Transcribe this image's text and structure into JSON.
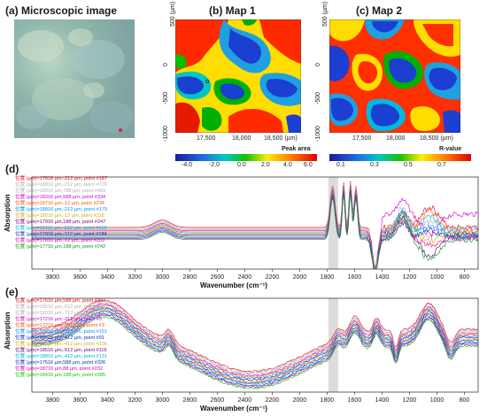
{
  "panels": {
    "a": {
      "title": "(a) Microscopic image"
    },
    "b": {
      "title": "(b) Map 1",
      "colorbar_label": "Peak area",
      "colorbar_ticks": [
        "-4.0",
        "-2.0",
        "0.0",
        "2.0",
        "4.0",
        "6.0"
      ],
      "x_ticks": [
        "17,500",
        "18,000",
        "18,500 (µm)"
      ],
      "y_ticks": [
        "500 (µm)",
        "0",
        "-500",
        "-1000"
      ]
    },
    "c": {
      "title": "(c) Map 2",
      "colorbar_label": "R-value",
      "colorbar_ticks": [
        "0.1",
        "0.3",
        "0.5",
        "0.7"
      ],
      "x_ticks": [
        "17,500",
        "18,000",
        "18,500 (µm)"
      ],
      "y_ticks": [
        "500 (µm)",
        "0",
        "-500",
        "-1000"
      ]
    },
    "d": {
      "label": "(d)"
    },
    "e": {
      "label": "(e)"
    }
  },
  "colors": {
    "red": "#ff0000",
    "blue": "#1b3fd1",
    "green": "#19b000",
    "yellow": "#ffee00",
    "cyan": "#00ccee"
  },
  "chart_data": [
    {
      "type": "line",
      "panel": "d",
      "xlabel": "Wavenumber (cm⁻¹)",
      "ylabel": "Absorption",
      "xlim": [
        3950,
        700
      ],
      "x_ticks": [
        "3800",
        "3600",
        "3400",
        "3200",
        "3000",
        "2800",
        "2600",
        "2400",
        "2200",
        "2000",
        "1800",
        "1600",
        "1400",
        "1200",
        "1000",
        "800"
      ],
      "shaded_band": [
        1790,
        1720
      ],
      "legend": [
        {
          "text": "位置 (µm)=17616 µm,-212 µm, point #167",
          "color": "#e0001b"
        },
        {
          "text": "位置 (µm)=18816 µm,-212 µm, point #176",
          "color": "#b0b0b0"
        },
        {
          "text": "位置 (µm)=18016 µm,788 µm, point #469",
          "color": "#b0b0b0"
        },
        {
          "text": "位置 (µm)=18316 µm,588 µm, point #334",
          "color": "#d000d0"
        },
        {
          "text": "位置 (µm)=18716 µm,-12 µm, point #234",
          "color": "#ff5a00"
        },
        {
          "text": "位置 (µm)=18816 µm,-212 µm, point #179",
          "color": "#0090ff"
        },
        {
          "text": "位置 (µm)=18016 µm,-12 µm, point #218",
          "color": "#d8b000"
        },
        {
          "text": "位置 (µm)=17916 µm,188 µm, point #247",
          "color": "#7a0080"
        },
        {
          "text": "位置 (µm)=18116 µm,-212 µm, point #166",
          "color": "#00b0e0"
        },
        {
          "text": "位置 (µm)=17916 µm,-112 µm, point #184",
          "color": "#0030c0"
        },
        {
          "text": "位置 (µm)=17816 µm,-12 µm, point #203",
          "color": "#e000a0"
        },
        {
          "text": "位置 (µm)=17716 µm,188 µm, point #242",
          "color": "#00a020"
        }
      ]
    },
    {
      "type": "line",
      "panel": "e",
      "xlabel": "Wavenumber (cm⁻¹)",
      "ylabel": "Absorption",
      "xlim": [
        3950,
        700
      ],
      "x_ticks": [
        "3800",
        "3600",
        "3400",
        "3200",
        "3000",
        "2800",
        "2600",
        "2400",
        "2200",
        "2000",
        "1800",
        "1600",
        "1400",
        "1200",
        "1000",
        "800"
      ],
      "shaded_band": [
        1790,
        1720
      ],
      "legend": [
        {
          "text": "位置 (µm)=17616 µm,588 µm, point #327",
          "color": "#e0001b"
        },
        {
          "text": "位置 (µm)=18516 µm,-612 µm, point #96",
          "color": "#b0b0b0"
        },
        {
          "text": "位置 (µm)=18016 µm,-712 µm, point #75",
          "color": "#b0b0b0"
        },
        {
          "text": "位置 (µm)=17216 µm,-212 µm, point #5",
          "color": "#d000d0"
        },
        {
          "text": "位置 (µm)=17216 µm,-1012 µm, point #3",
          "color": "#ff5a00"
        },
        {
          "text": "位置 (µm)=18016 µm,-312 µm, point #151",
          "color": "#0090ff"
        },
        {
          "text": "位置 (µm)=18016 µm,-612 µm, point #91",
          "color": "#0030c0"
        },
        {
          "text": "位置 (µm)=18516 µm,-412 µm, point #136",
          "color": "#d8b000"
        },
        {
          "text": "位置 (µm)=18516 µm,-512 µm, point #116",
          "color": "#7a0080"
        },
        {
          "text": "位置 (µm)=18816 µm,-412 µm, point #131",
          "color": "#00b0e0"
        },
        {
          "text": "位置 (µm)=17516 µm,588 µm, point #326",
          "color": "#0030c0"
        },
        {
          "text": "位置 (µm)=18716 µm,88 µm, point #232",
          "color": "#e000a0"
        },
        {
          "text": "位置 (µm)=18416 µm,188 µm, point #285",
          "color": "#00d000"
        }
      ]
    }
  ]
}
